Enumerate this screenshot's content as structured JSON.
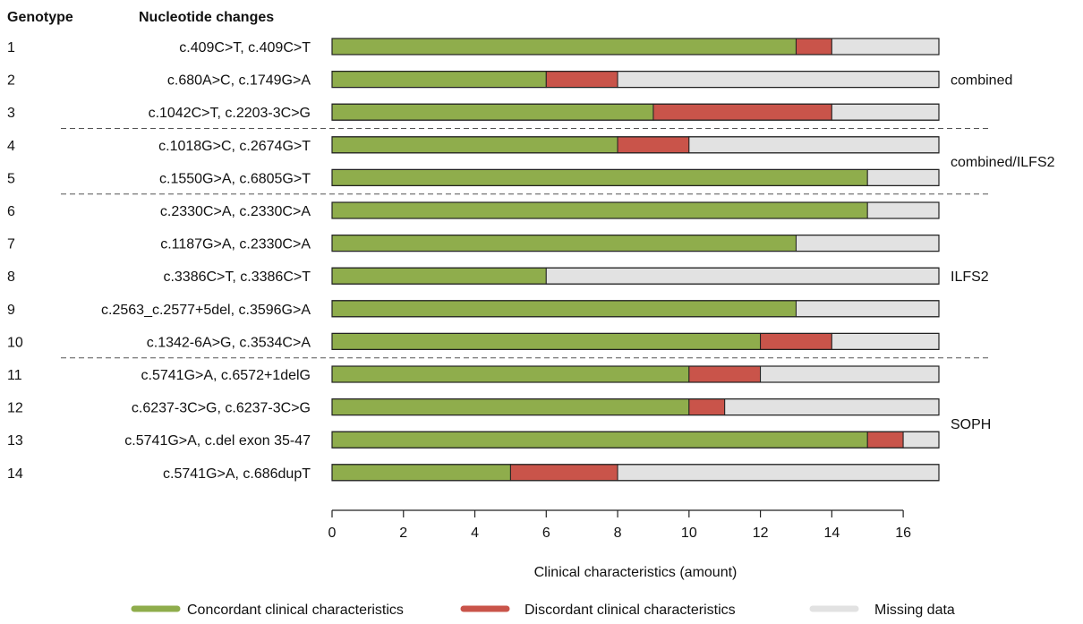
{
  "chart_data": {
    "type": "bar",
    "stacked": true,
    "orientation": "horizontal",
    "title": "",
    "column_headers": {
      "genotype": "Genotype",
      "changes": "Nucleotide changes"
    },
    "xlabel": "Clinical characteristics (amount)",
    "xlim": [
      0,
      17
    ],
    "xticks": [
      "0",
      "2",
      "4",
      "6",
      "8",
      "10",
      "12",
      "14",
      "16"
    ],
    "xtick_values": [
      0,
      2,
      4,
      6,
      8,
      10,
      12,
      14,
      16
    ],
    "grid": false,
    "legend_position": "bottom",
    "genotypes": [
      "1",
      "2",
      "3",
      "4",
      "5",
      "6",
      "7",
      "8",
      "9",
      "10",
      "11",
      "12",
      "13",
      "14"
    ],
    "categories": [
      "c.409C>T, c.409C>T",
      "c.680A>C, c.1749G>A",
      "c.1042C>T, c.2203-3C>G",
      "c.1018G>C, c.2674G>T",
      "c.1550G>A, c.6805G>T",
      "c.2330C>A, c.2330C>A",
      "c.1187G>A, c.2330C>A",
      "c.3386C>T, c.3386C>T",
      "c.2563_c.2577+5del,  c.3596G>A",
      "c.1342-6A>G, c.3534C>A",
      "c.5741G>A, c.6572+1delG",
      "c.6237-3C>G, c.6237-3C>G",
      "c.5741G>A, c.del exon 35-47",
      "c.5741G>A, c.686dupT"
    ],
    "series": [
      {
        "name": "Concordant clinical characteristics",
        "color": "#8fad4c",
        "values": [
          13,
          6,
          9,
          8,
          15,
          15,
          13,
          6,
          13,
          12,
          10,
          10,
          15,
          5
        ]
      },
      {
        "name": "Discordant clinical characteristics",
        "color": "#c9544a",
        "values": [
          1,
          2,
          5,
          2,
          0,
          0,
          0,
          0,
          0,
          2,
          2,
          1,
          1,
          3
        ]
      },
      {
        "name": "Missing data",
        "color": "#e2e2e2",
        "values": [
          3,
          9,
          3,
          7,
          2,
          2,
          4,
          11,
          4,
          3,
          5,
          6,
          1,
          9
        ]
      }
    ],
    "groups": [
      {
        "label": "combined",
        "rows": [
          0,
          2
        ]
      },
      {
        "label": "combined/ILFS2",
        "rows": [
          3,
          4
        ]
      },
      {
        "label": "ILFS2",
        "rows": [
          5,
          9
        ]
      },
      {
        "label": "SOPH",
        "rows": [
          10,
          13
        ]
      }
    ]
  }
}
